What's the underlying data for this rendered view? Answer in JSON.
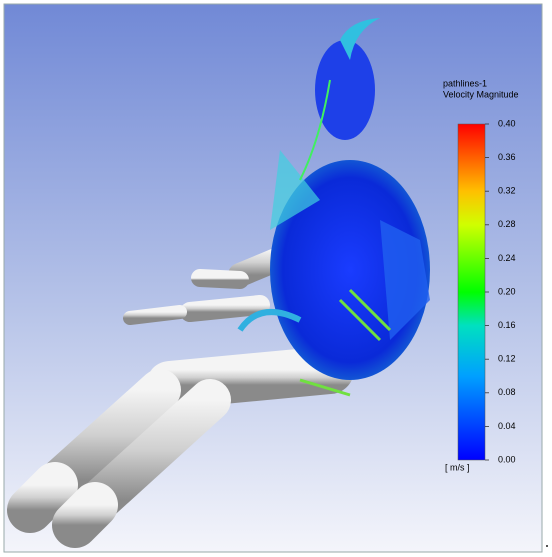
{
  "legend": {
    "title": "pathlines-1",
    "subtitle": "Velocity Magnitude",
    "ticks": [
      {
        "value": 0.4,
        "label": "0.40"
      },
      {
        "value": 0.36,
        "label": "0.36"
      },
      {
        "value": 0.32,
        "label": "0.32"
      },
      {
        "value": 0.28,
        "label": "0.28"
      },
      {
        "value": 0.24,
        "label": "0.24"
      },
      {
        "value": 0.2,
        "label": "0.20"
      },
      {
        "value": 0.16,
        "label": "0.16"
      },
      {
        "value": 0.12,
        "label": "0.12"
      },
      {
        "value": 0.08,
        "label": "0.08"
      },
      {
        "value": 0.04,
        "label": "0.04"
      },
      {
        "value": 0,
        "label": "0.00"
      }
    ],
    "unit": "[ m/s ]"
  }
}
